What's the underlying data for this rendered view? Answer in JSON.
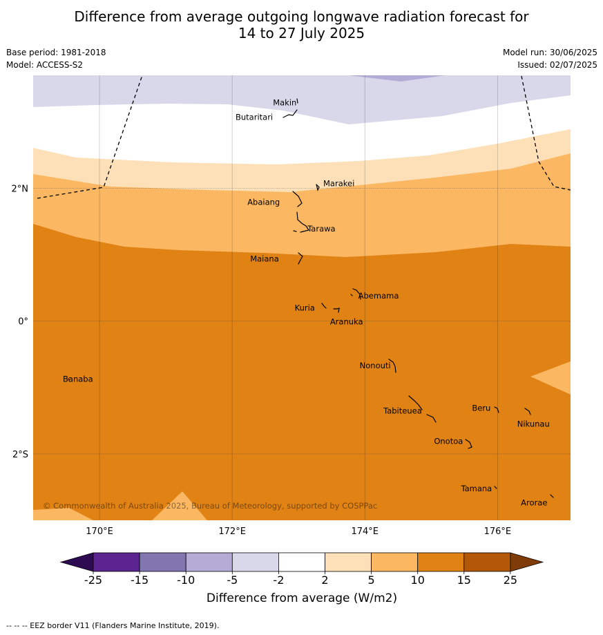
{
  "title": {
    "line1": "Difference from average outgoing longwave radiation forecast for",
    "line2": "14 to 27 July 2025"
  },
  "meta": {
    "base_period": "Base period: 1981-2018",
    "model": "Model: ACCESS-S2",
    "model_run": "Model run: 30/06/2025",
    "issued": "Issued: 02/07/2025"
  },
  "map": {
    "lon_range": [
      169,
      177.1
    ],
    "lat_range": [
      -3,
      3.7
    ],
    "lon_ticks": [
      {
        "value": 170,
        "label": "170°E"
      },
      {
        "value": 172,
        "label": "172°E"
      },
      {
        "value": 174,
        "label": "174°E"
      },
      {
        "value": 176,
        "label": "176°E"
      }
    ],
    "lat_ticks": [
      {
        "value": 2,
        "label": "2°N"
      },
      {
        "value": 0,
        "label": "0°"
      },
      {
        "value": -2,
        "label": "2°S"
      }
    ],
    "places": [
      {
        "name": "Makin",
        "lon": 173.0,
        "lat": 3.3
      },
      {
        "name": "Butaritari",
        "lon": 172.8,
        "lat": 3.1
      },
      {
        "name": "Marakei",
        "lon": 173.3,
        "lat": 2.0
      },
      {
        "name": "Abaiang",
        "lon": 173.0,
        "lat": 1.8
      },
      {
        "name": "Tarawa",
        "lon": 173.0,
        "lat": 1.4
      },
      {
        "name": "Maiana",
        "lon": 173.0,
        "lat": 0.95
      },
      {
        "name": "Abemama",
        "lon": 173.9,
        "lat": 0.4
      },
      {
        "name": "Kuria",
        "lon": 173.4,
        "lat": 0.22
      },
      {
        "name": "Aranuka",
        "lon": 173.6,
        "lat": 0.16
      },
      {
        "name": "Nonouti",
        "lon": 174.4,
        "lat": -0.65
      },
      {
        "name": "Banaba",
        "lon": 169.5,
        "lat": -0.85
      },
      {
        "name": "Tabiteuea",
        "lon": 174.8,
        "lat": -1.3
      },
      {
        "name": "Beru",
        "lon": 176.0,
        "lat": -1.3
      },
      {
        "name": "Nikunau",
        "lon": 176.4,
        "lat": -1.35
      },
      {
        "name": "Onotoa",
        "lon": 175.5,
        "lat": -1.8
      },
      {
        "name": "Tamana",
        "lon": 175.97,
        "lat": -2.5
      },
      {
        "name": "Arorae",
        "lon": 176.8,
        "lat": -2.65
      }
    ],
    "copyright": "© Commonwealth of Australia 2025, Bureau of Meteorology, supported by COSPPac"
  },
  "legend": {
    "title": "Difference from average (W/m2)",
    "bins": [
      {
        "color": "#2d0a52",
        "from": "",
        "to": "-25",
        "extend": "low"
      },
      {
        "color": "#5b2490",
        "from": "-25",
        "to": "-15"
      },
      {
        "color": "#8176b0",
        "from": "-15",
        "to": "-10"
      },
      {
        "color": "#b4acd6",
        "from": "-10",
        "to": "-5"
      },
      {
        "color": "#d8d8ea",
        "from": "-5",
        "to": "-2"
      },
      {
        "color": "#ffffff",
        "from": "-2",
        "to": "2"
      },
      {
        "color": "#fde0b7",
        "from": "2",
        "to": "5"
      },
      {
        "color": "#fbb762",
        "from": "5",
        "to": "10"
      },
      {
        "color": "#e08214",
        "from": "10",
        "to": "15"
      },
      {
        "color": "#b35806",
        "from": "15",
        "to": "25"
      },
      {
        "color": "#7f3b08",
        "from": "25",
        "to": "",
        "extend": "high"
      }
    ],
    "tick_labels": [
      "-25",
      "-15",
      "-10",
      "-5",
      "-2",
      "2",
      "5",
      "10",
      "15",
      "25"
    ]
  },
  "footnote": "--  --  -- EEZ border V11 (Flanders Marine Institute, 2019)."
}
